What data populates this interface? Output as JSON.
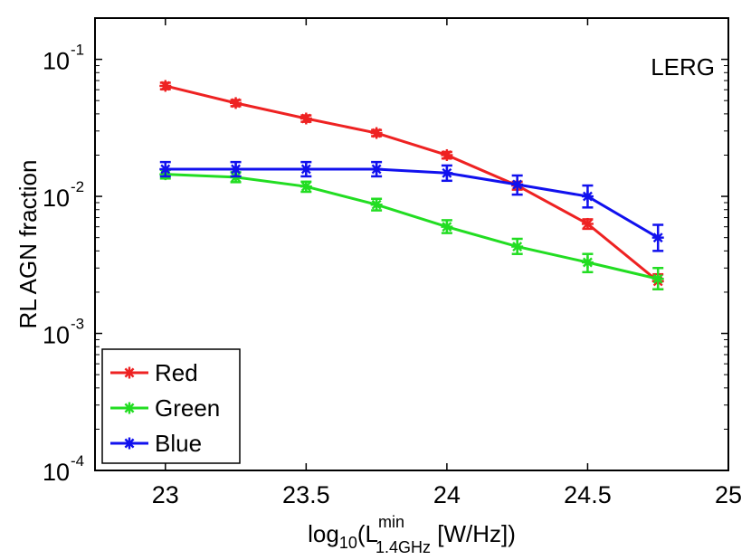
{
  "chart_data": {
    "type": "line",
    "title": "",
    "annotation": "LERG",
    "y_scale": "log",
    "xlim": [
      22.75,
      25
    ],
    "ylim": [
      0.0001,
      0.2
    ],
    "x_ticks": [
      {
        "value": 23,
        "label": "23"
      },
      {
        "value": 23.5,
        "label": "23.5"
      },
      {
        "value": 24,
        "label": "24"
      },
      {
        "value": 24.5,
        "label": "24.5"
      },
      {
        "value": 25,
        "label": "25"
      }
    ],
    "y_ticks": [
      {
        "value": 0.0001,
        "base": "10",
        "exp": "-4"
      },
      {
        "value": 0.001,
        "base": "10",
        "exp": "-3"
      },
      {
        "value": 0.01,
        "base": "10",
        "exp": "-2"
      },
      {
        "value": 0.1,
        "base": "10",
        "exp": "-1"
      }
    ],
    "xlabel": {
      "prefix": "log",
      "sub1": "10",
      "open": "(L",
      "sup": "min",
      "sub2": "1.4GHz",
      "suffix": " [W/Hz])"
    },
    "ylabel": "RL AGN fraction",
    "x": [
      23,
      23.25,
      23.5,
      23.75,
      24,
      24.25,
      24.5,
      24.75
    ],
    "series": [
      {
        "name": "Red",
        "color": "#ee2222",
        "values": [
          0.064,
          0.048,
          0.037,
          0.029,
          0.02,
          0.012,
          0.0063,
          0.0024
        ],
        "err_low": [
          0.0605,
          0.0455,
          0.035,
          0.0275,
          0.0189,
          0.0112,
          0.0058,
          0.0021
        ],
        "err_high": [
          0.0675,
          0.0505,
          0.039,
          0.0305,
          0.0211,
          0.0128,
          0.0068,
          0.0027
        ]
      },
      {
        "name": "Green",
        "color": "#22dd22",
        "values": [
          0.0145,
          0.0138,
          0.0118,
          0.0087,
          0.006,
          0.0043,
          0.0033,
          0.0025
        ],
        "err_low": [
          0.0135,
          0.0127,
          0.0108,
          0.0079,
          0.0054,
          0.0038,
          0.0028,
          0.0021
        ],
        "err_high": [
          0.0156,
          0.015,
          0.0128,
          0.0096,
          0.0067,
          0.0049,
          0.0038,
          0.003
        ]
      },
      {
        "name": "Blue",
        "color": "#1111ee",
        "values": [
          0.0158,
          0.0158,
          0.0158,
          0.0158,
          0.0148,
          0.0122,
          0.01,
          0.005
        ],
        "err_low": [
          0.014,
          0.014,
          0.014,
          0.014,
          0.013,
          0.0103,
          0.0083,
          0.004
        ],
        "err_high": [
          0.0178,
          0.0178,
          0.0178,
          0.0178,
          0.0168,
          0.0142,
          0.012,
          0.0062
        ]
      }
    ],
    "legend_position": "bottom-left"
  }
}
